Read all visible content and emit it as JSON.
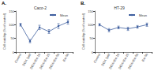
{
  "chart_data": [
    {
      "type": "line",
      "title": "Caco-2",
      "annotations": [
        "A."
      ],
      "y_label": "Cell viability (% of control)",
      "categories": [
        "Control",
        "DOX 1μM",
        "DOX+Ext 10",
        "DOX+Ext 25",
        "DOX+Ext 50",
        "Ext 50"
      ],
      "series": [
        {
          "name": "Mean",
          "color": "#3f5f9f",
          "marker": "circle",
          "line_style": "solid",
          "values": [
            100,
            40,
            90,
            75,
            95,
            110
          ],
          "errors": [
            5,
            6,
            8,
            7,
            9,
            8
          ]
        }
      ],
      "ylim": [
        0,
        150
      ],
      "yticks": [
        0,
        50,
        100,
        150
      ],
      "legend": "top-right",
      "grid": false
    },
    {
      "type": "line",
      "title": "HT-29",
      "annotations": [
        "B."
      ],
      "y_label": "Cell viability (% of control)",
      "categories": [
        "Control",
        "DOX 1μM",
        "DOX+Ext 10",
        "DOX+Ext 25",
        "DOX+Ext 50",
        "Ext 50"
      ],
      "series": [
        {
          "name": "Mean",
          "color": "#3f5f9f",
          "marker": "circle",
          "line_style": "solid",
          "values": [
            100,
            80,
            90,
            85,
            92,
            100
          ],
          "errors": [
            4,
            6,
            5,
            6,
            5,
            6
          ]
        }
      ],
      "ylim": [
        0,
        150
      ],
      "yticks": [
        0,
        50,
        100,
        150
      ],
      "legend": "top-right",
      "grid": false
    }
  ]
}
